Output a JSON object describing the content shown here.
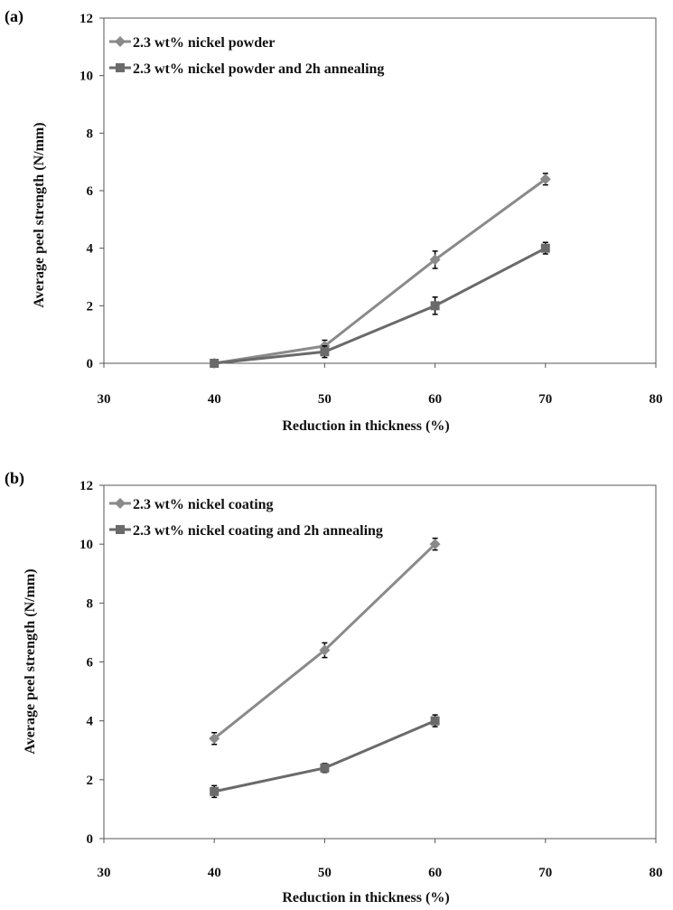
{
  "chart_data": [
    {
      "type": "line",
      "panel_label": "(a)",
      "xlabel": "Reduction in thickness (%)",
      "ylabel": "Average peel strength (N/mm)",
      "xlim": [
        30,
        80
      ],
      "ylim": [
        0,
        12
      ],
      "xticks": [
        30,
        40,
        50,
        60,
        70,
        80
      ],
      "yticks": [
        0,
        2,
        4,
        6,
        8,
        10,
        12
      ],
      "grid": false,
      "legend_position": "top-left",
      "series": [
        {
          "name": "2.3 wt% nickel powder",
          "marker": "diamond",
          "color": "#8a8a8a",
          "x": [
            40,
            50,
            60,
            70
          ],
          "y": [
            0,
            0.6,
            3.6,
            6.4
          ],
          "err": [
            0.05,
            0.2,
            0.3,
            0.2
          ]
        },
        {
          "name": "2.3 wt% nickel powder and 2h annealing",
          "marker": "square",
          "color": "#6a6a6a",
          "x": [
            40,
            50,
            60,
            70
          ],
          "y": [
            0,
            0.4,
            2.0,
            4.0
          ],
          "err": [
            0.05,
            0.2,
            0.3,
            0.2
          ]
        }
      ]
    },
    {
      "type": "line",
      "panel_label": "(b)",
      "xlabel": "Reduction in thickness (%)",
      "ylabel": "Average peel strength (N/mm)",
      "xlim": [
        30,
        80
      ],
      "ylim": [
        0,
        12
      ],
      "xticks": [
        30,
        40,
        50,
        60,
        70,
        80
      ],
      "yticks": [
        0,
        2,
        4,
        6,
        8,
        10,
        12
      ],
      "grid": false,
      "legend_position": "top-left",
      "series": [
        {
          "name": "2.3 wt% nickel coating",
          "marker": "diamond",
          "color": "#8a8a8a",
          "x": [
            40,
            50,
            60
          ],
          "y": [
            3.4,
            6.4,
            10.0
          ],
          "err": [
            0.2,
            0.25,
            0.2
          ]
        },
        {
          "name": "2.3 wt% nickel coating and 2h annealing",
          "marker": "square",
          "color": "#6a6a6a",
          "x": [
            40,
            50,
            60
          ],
          "y": [
            1.6,
            2.4,
            4.0
          ],
          "err": [
            0.2,
            0.15,
            0.2
          ]
        }
      ]
    }
  ]
}
